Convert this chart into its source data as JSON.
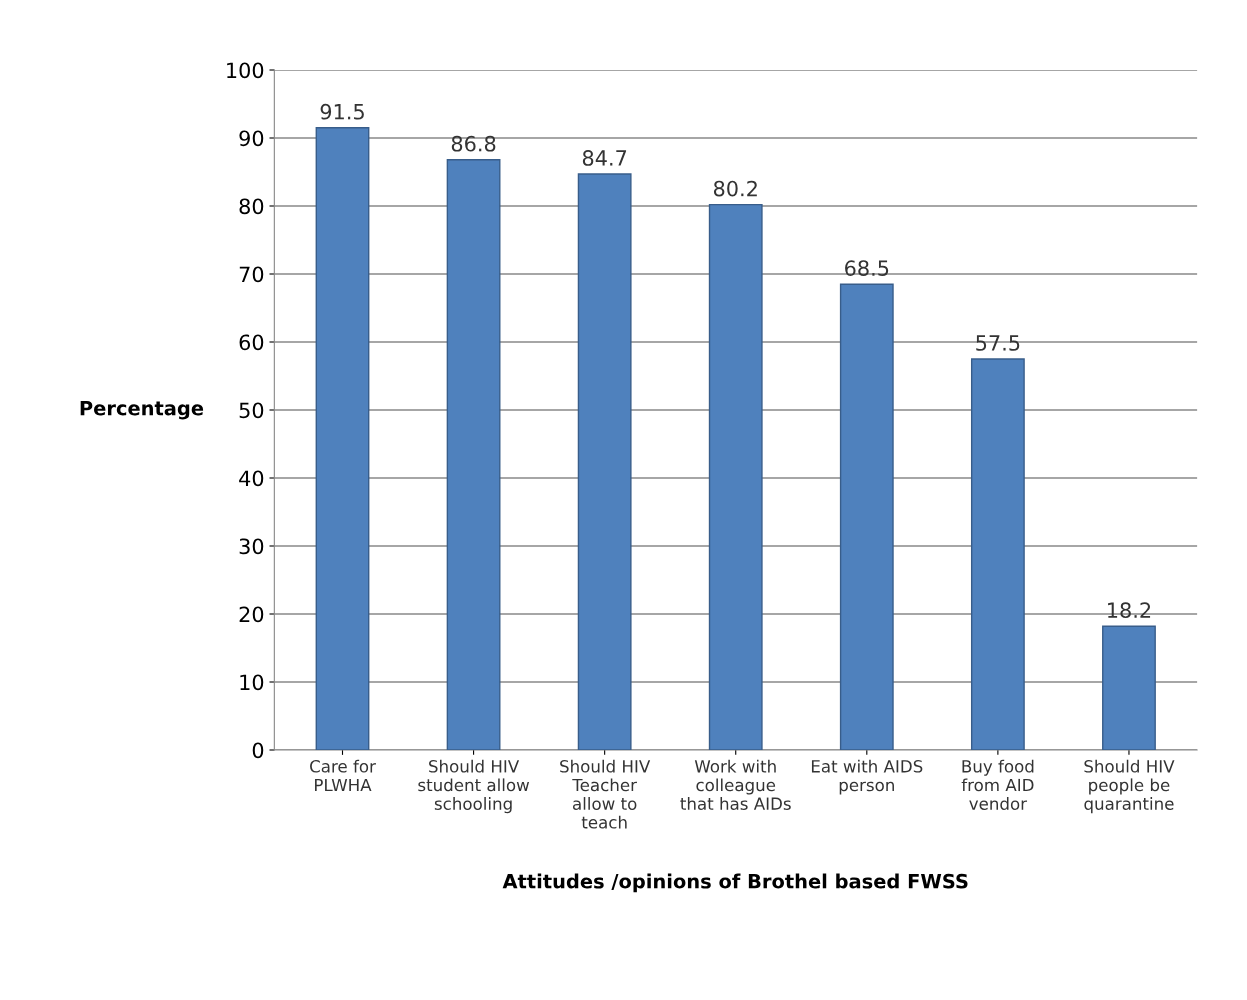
{
  "chart_data": {
    "type": "bar",
    "categories": [
      "Care for\nPLWHA",
      "Should HIV\nstudent allow\nschooling",
      "Should HIV\nTeacher\nallow to\nteach",
      "Work with\ncolleague\nthat has AIDs",
      "Eat with AIDS\nperson",
      "Buy food\nfrom AID\nvendor",
      "Should HIV\npeople be\nquarantine"
    ],
    "values": [
      91.5,
      86.8,
      84.7,
      80.2,
      68.5,
      57.5,
      18.2
    ],
    "color": "#4f81bd",
    "xlabel": "Attitudes /opinions of Brothel based FWSS",
    "ylabel": "Percentage",
    "ylim": [
      0,
      100
    ],
    "yticks": [
      0,
      10,
      20,
      30,
      40,
      50,
      60,
      70,
      80,
      90,
      100
    ],
    "grid": "y",
    "data_labels": true
  }
}
